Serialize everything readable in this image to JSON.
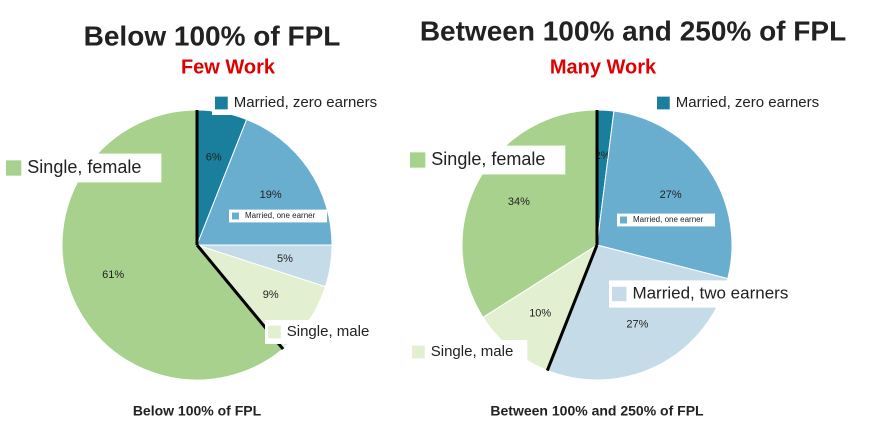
{
  "chart_data": [
    {
      "type": "pie",
      "title": "Below 100% of FPL",
      "subtitle": "Few Work",
      "caption": "Below 100% of FPL",
      "categories": [
        "Married, zero earners",
        "Married, one earner",
        null,
        "Single, male",
        "Single, female"
      ],
      "values": [
        6,
        19,
        5,
        9,
        61
      ],
      "value_labels": [
        "6%",
        "19%",
        "5%",
        "9%",
        "61%"
      ],
      "colors": [
        "#1a7f9c",
        "#6aaecf",
        "#c5dce8",
        "#e2efd0",
        "#a9d18e"
      ]
    },
    {
      "type": "pie",
      "title": "Between 100% and 250% of FPL",
      "subtitle": "Many Work",
      "caption": "Between 100% and 250% of FPL",
      "categories": [
        "Married, zero earners",
        "Married, one earner",
        "Married, two earners",
        "Single, male",
        "Single, female"
      ],
      "values": [
        2,
        27,
        27,
        10,
        34
      ],
      "value_labels": [
        "2%",
        "27%",
        "27%",
        "10%",
        "34%"
      ],
      "colors": [
        "#1a7f9c",
        "#6aaecf",
        "#c5dce8",
        "#e2efd0",
        "#a9d18e"
      ]
    }
  ]
}
